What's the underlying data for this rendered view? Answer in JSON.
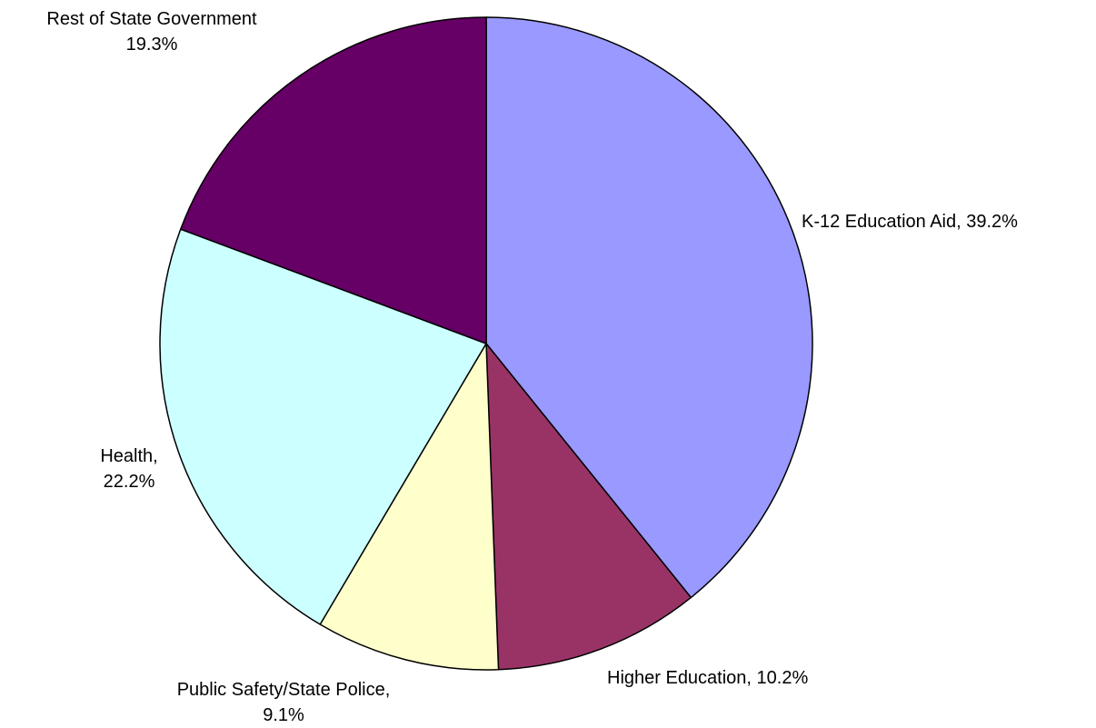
{
  "chart_data": {
    "type": "pie",
    "title": "",
    "start_angle_deg": 0,
    "direction": "clockwise",
    "slices": [
      {
        "category": "K-12 Education Aid",
        "value": 39.2,
        "color": "#9999FF",
        "label_lines": [
          "K-12 Education Aid, 39.2%"
        ]
      },
      {
        "category": "Higher Education",
        "value": 10.2,
        "color": "#993366",
        "label_lines": [
          "Higher Education, 10.2%"
        ]
      },
      {
        "category": "Public Safety/State Police",
        "value": 9.1,
        "color": "#FFFFCC",
        "label_lines": [
          "Public Safety/State Police,",
          "9.1%"
        ]
      },
      {
        "category": "Health",
        "value": 22.2,
        "color": "#CCFFFF",
        "label_lines": [
          "Health,",
          "22.2%"
        ]
      },
      {
        "category": "Rest of State Government",
        "value": 19.3,
        "color": "#660066",
        "label_lines": [
          "Rest of State Government",
          "19.3%"
        ]
      }
    ]
  }
}
